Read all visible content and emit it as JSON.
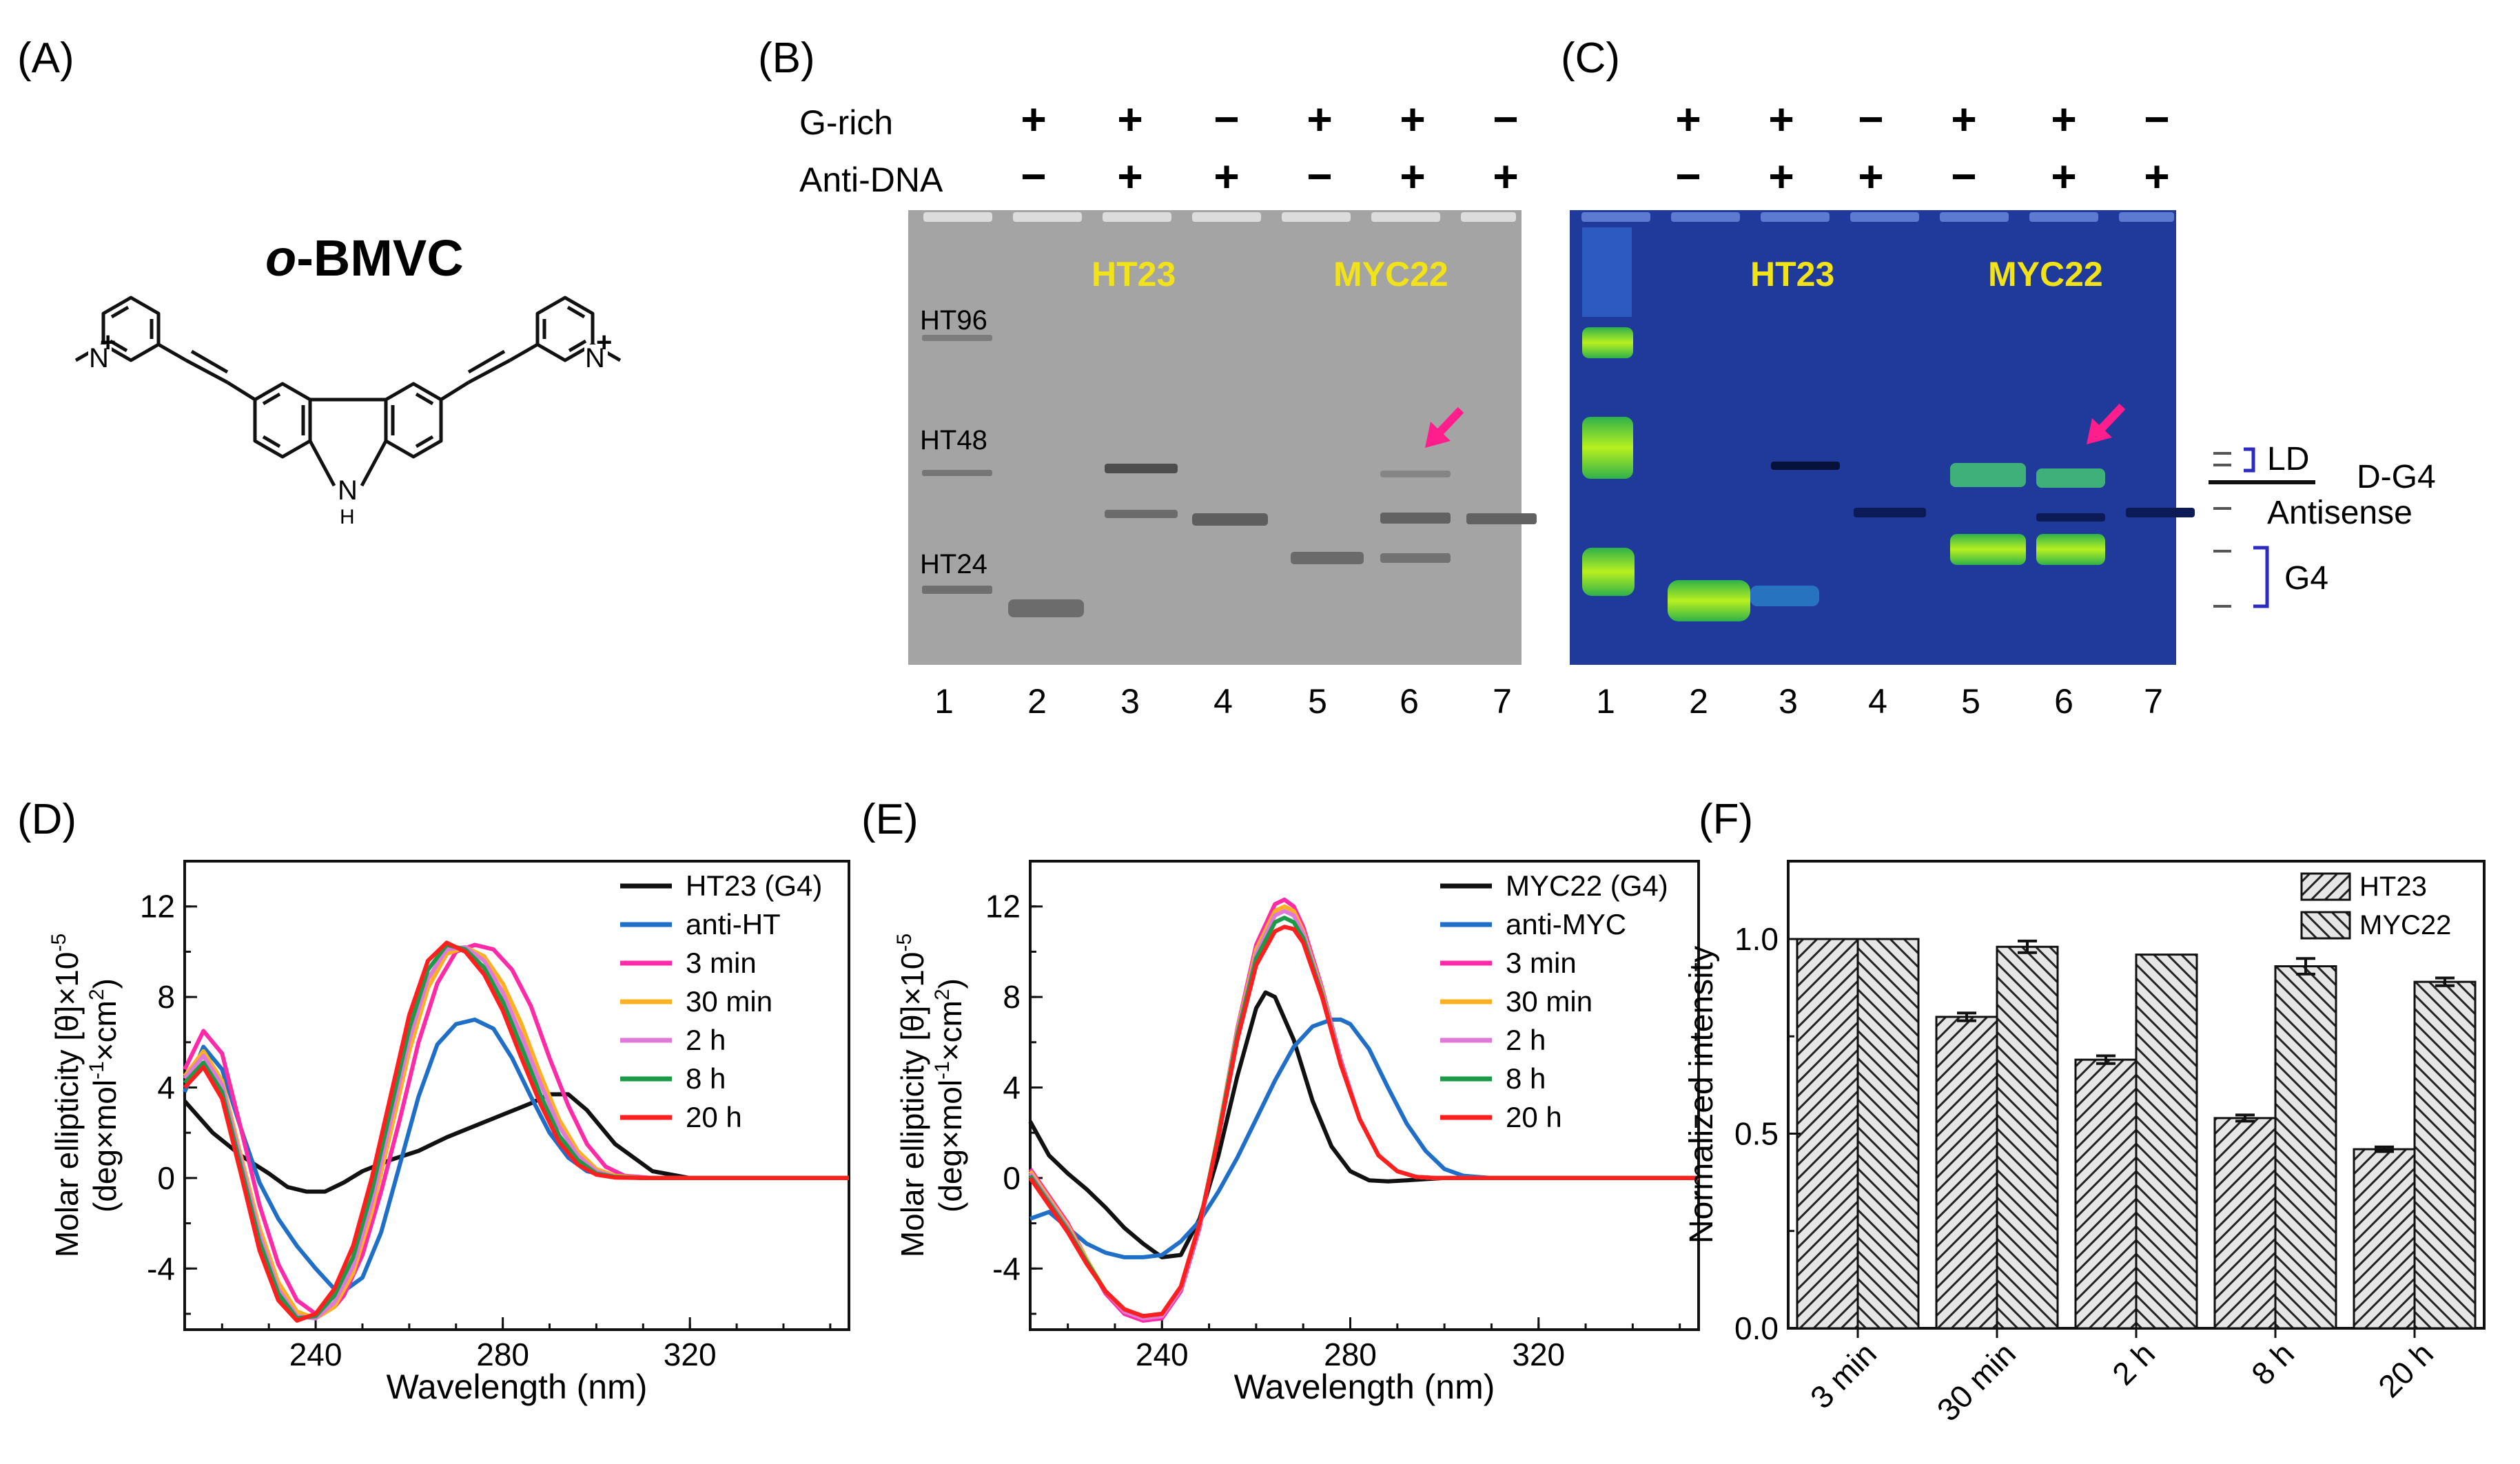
{
  "panels": {
    "A": {
      "label": "(A)",
      "compound": {
        "prefix": "o",
        "name": "-BMVC"
      },
      "atoms": {
        "cation": "N",
        "plus": "+",
        "nh": "N",
        "h": "H"
      }
    },
    "B": {
      "label": "(B)"
    },
    "C": {
      "label": "(C)"
    },
    "D": {
      "label": "(D)"
    },
    "E": {
      "label": "(E)"
    },
    "F": {
      "label": "(F)"
    }
  },
  "gel": {
    "row_labels": [
      "G-rich",
      "Anti-DNA"
    ],
    "g_rich": [
      "+",
      "+",
      "−",
      "+",
      "+",
      "−"
    ],
    "anti_dna": [
      "−",
      "+",
      "+",
      "−",
      "+",
      "+"
    ],
    "lanes": [
      "1",
      "2",
      "3",
      "4",
      "5",
      "6",
      "7"
    ],
    "sample_labels": [
      "HT23",
      "MYC22"
    ],
    "ladder": [
      "HT96",
      "HT48",
      "HT24"
    ],
    "band_labels": {
      "ld": "LD",
      "dg4": "D-G4",
      "antisense": "Antisense",
      "g4": "G4"
    },
    "colors": {
      "sample_label": "#f2e21a",
      "arrow": "#ff1e8c",
      "bracket": "#2b2bbf"
    }
  },
  "chart_data": [
    {
      "type": "line",
      "panel": "D",
      "xlabel": "Wavelength (nm)",
      "ylabel_line1": "Molar ellipticity [θ]×10",
      "ylabel_exp": "-5",
      "ylabel_line2": "(deg×mol",
      "ylabel_line2b": "×cm",
      "ylabel_line2c": ")",
      "xlim": [
        212,
        354
      ],
      "ylim": [
        -6.7,
        14
      ],
      "xticks": [
        240,
        280,
        320
      ],
      "yticks": [
        -4,
        0,
        4,
        8,
        12
      ],
      "ytick_labels": [
        "-4",
        "0",
        "4",
        "8",
        "12"
      ],
      "series": [
        {
          "name": "HT23 (G4)",
          "color": "#111111",
          "x": [
            212,
            218,
            224,
            230,
            234,
            238,
            242,
            246,
            250,
            256,
            262,
            268,
            274,
            280,
            286,
            290,
            294,
            298,
            304,
            312,
            320,
            330,
            340,
            350,
            354
          ],
          "y": [
            3.4,
            2.0,
            1.0,
            0.2,
            -0.4,
            -0.6,
            -0.6,
            -0.2,
            0.3,
            0.8,
            1.2,
            1.8,
            2.3,
            2.8,
            3.3,
            3.7,
            3.7,
            3.0,
            1.5,
            0.3,
            0,
            0,
            0,
            0,
            0
          ]
        },
        {
          "name": "anti-HT",
          "color": "#1f6fc9",
          "x": [
            212,
            216,
            220,
            224,
            228,
            232,
            236,
            240,
            244,
            246,
            250,
            254,
            258,
            262,
            266,
            270,
            274,
            278,
            282,
            286,
            290,
            294,
            298,
            304,
            310,
            320,
            330,
            340,
            350,
            354
          ],
          "y": [
            3.8,
            5.8,
            4.8,
            2.2,
            -0.2,
            -1.8,
            -3.0,
            -4.0,
            -4.9,
            -5.0,
            -4.4,
            -2.4,
            0.6,
            3.6,
            5.9,
            6.8,
            7.0,
            6.6,
            5.3,
            3.6,
            2.0,
            0.9,
            0.3,
            0.05,
            0,
            0,
            0,
            0,
            0,
            0
          ]
        },
        {
          "name": "3 min",
          "color": "#ff2aa8",
          "x": [
            212,
            216,
            220,
            224,
            228,
            232,
            236,
            240,
            244,
            246,
            250,
            254,
            258,
            262,
            266,
            270,
            274,
            278,
            282,
            286,
            290,
            294,
            298,
            302,
            306,
            312,
            320,
            330,
            340,
            350,
            354
          ],
          "y": [
            4.8,
            6.5,
            5.5,
            2.2,
            -1.2,
            -3.8,
            -5.4,
            -6.0,
            -5.7,
            -5.2,
            -3.4,
            -0.6,
            2.6,
            6.0,
            8.6,
            10.0,
            10.3,
            10.1,
            9.2,
            7.6,
            5.3,
            3.2,
            1.5,
            0.5,
            0.1,
            0,
            0,
            0,
            0,
            0,
            0
          ]
        },
        {
          "name": "30 min",
          "color": "#ffb020",
          "x": [
            212,
            216,
            220,
            224,
            228,
            232,
            236,
            240,
            244,
            248,
            252,
            256,
            260,
            264,
            268,
            272,
            276,
            280,
            284,
            288,
            292,
            296,
            300,
            304,
            310,
            320,
            330,
            340,
            350,
            354
          ],
          "y": [
            4.5,
            5.6,
            4.3,
            1.0,
            -2.2,
            -4.6,
            -5.9,
            -6.2,
            -5.7,
            -4.2,
            -1.5,
            2.0,
            5.6,
            8.4,
            9.9,
            10.2,
            9.8,
            8.6,
            6.8,
            4.6,
            2.6,
            1.2,
            0.4,
            0.1,
            0,
            0,
            0,
            0,
            0,
            0
          ]
        },
        {
          "name": "2 h",
          "color": "#e07ad8",
          "x": [
            212,
            216,
            220,
            224,
            228,
            232,
            236,
            240,
            244,
            248,
            252,
            256,
            260,
            264,
            268,
            272,
            276,
            280,
            284,
            288,
            292,
            296,
            300,
            304,
            310,
            320,
            330,
            340,
            350,
            354
          ],
          "y": [
            4.4,
            5.4,
            4.1,
            0.8,
            -2.5,
            -4.9,
            -6.1,
            -6.2,
            -5.5,
            -3.9,
            -1.1,
            2.5,
            6.1,
            8.8,
            10.1,
            10.2,
            9.6,
            8.2,
            6.3,
            4.2,
            2.3,
            1.0,
            0.3,
            0.05,
            0,
            0,
            0,
            0,
            0,
            0
          ]
        },
        {
          "name": "8 h",
          "color": "#1d9a48",
          "x": [
            212,
            216,
            220,
            224,
            228,
            232,
            236,
            240,
            244,
            248,
            252,
            256,
            260,
            264,
            268,
            272,
            276,
            280,
            284,
            288,
            292,
            296,
            300,
            304,
            310,
            320,
            330,
            340,
            350,
            354
          ],
          "y": [
            4.2,
            5.1,
            3.8,
            0.5,
            -2.8,
            -5.1,
            -6.2,
            -6.1,
            -5.2,
            -3.5,
            -0.6,
            3.0,
            6.6,
            9.2,
            10.3,
            10.1,
            9.3,
            7.8,
            5.8,
            3.7,
            1.9,
            0.8,
            0.2,
            0.05,
            0,
            0,
            0,
            0,
            0,
            0
          ]
        },
        {
          "name": "20 h",
          "color": "#ff1f1f",
          "x": [
            212,
            216,
            220,
            224,
            228,
            232,
            236,
            240,
            244,
            248,
            252,
            256,
            260,
            264,
            268,
            272,
            276,
            280,
            284,
            288,
            292,
            296,
            300,
            304,
            310,
            320,
            330,
            340,
            350,
            354
          ],
          "y": [
            4.0,
            4.9,
            3.5,
            0.2,
            -3.2,
            -5.4,
            -6.3,
            -6.0,
            -4.9,
            -3.0,
            0.0,
            3.6,
            7.2,
            9.6,
            10.4,
            10.0,
            9.0,
            7.4,
            5.3,
            3.3,
            1.6,
            0.6,
            0.15,
            0.02,
            0,
            0,
            0,
            0,
            0,
            0
          ]
        }
      ]
    },
    {
      "type": "line",
      "panel": "E",
      "xlabel": "Wavelength (nm)",
      "ylabel_line1": "Molar ellipticity [θ]×10",
      "ylabel_exp": "-5",
      "ylabel_line2": "(deg×mol",
      "ylabel_line2b": "×cm",
      "ylabel_line2c": ")",
      "xlim": [
        212,
        354
      ],
      "ylim": [
        -6.7,
        14
      ],
      "xticks": [
        240,
        280,
        320
      ],
      "yticks": [
        -4,
        0,
        4,
        8,
        12
      ],
      "ytick_labels": [
        "-4",
        "0",
        "4",
        "8",
        "12"
      ],
      "series": [
        {
          "name": "MYC22 (G4)",
          "color": "#111111",
          "x": [
            212,
            216,
            220,
            224,
            228,
            232,
            236,
            240,
            244,
            248,
            252,
            256,
            260,
            262,
            264,
            268,
            272,
            276,
            280,
            284,
            288,
            292,
            296,
            300,
            306,
            312,
            320,
            330,
            340,
            350,
            354
          ],
          "y": [
            2.5,
            1.0,
            0.2,
            -0.5,
            -1.3,
            -2.2,
            -2.9,
            -3.5,
            -3.4,
            -1.8,
            1.0,
            4.5,
            7.5,
            8.2,
            8.0,
            6.1,
            3.4,
            1.4,
            0.3,
            -0.1,
            -0.15,
            -0.1,
            -0.05,
            0,
            0,
            0,
            0,
            0,
            0,
            0,
            0
          ]
        },
        {
          "name": "anti-MYC",
          "color": "#1f6fc9",
          "x": [
            212,
            216,
            220,
            224,
            228,
            232,
            236,
            240,
            244,
            248,
            252,
            256,
            260,
            264,
            268,
            272,
            276,
            278,
            280,
            284,
            288,
            292,
            296,
            300,
            304,
            310,
            320,
            330,
            340,
            350,
            354
          ],
          "y": [
            -1.8,
            -1.5,
            -2.2,
            -2.9,
            -3.3,
            -3.5,
            -3.5,
            -3.4,
            -2.8,
            -1.9,
            -0.6,
            0.9,
            2.6,
            4.3,
            5.8,
            6.7,
            7.0,
            7.0,
            6.8,
            5.7,
            4.0,
            2.4,
            1.2,
            0.4,
            0.1,
            0,
            0,
            0,
            0,
            0,
            0
          ]
        },
        {
          "name": "3 min",
          "color": "#ff2aa8",
          "x": [
            212,
            216,
            220,
            224,
            228,
            232,
            236,
            240,
            244,
            248,
            252,
            256,
            260,
            264,
            266,
            268,
            270,
            274,
            278,
            282,
            286,
            290,
            294,
            298,
            302,
            308,
            316,
            330,
            340,
            350,
            354
          ],
          "y": [
            0.4,
            -0.8,
            -2.0,
            -3.6,
            -5.1,
            -6.0,
            -6.3,
            -6.2,
            -5.0,
            -2.2,
            2.0,
            6.6,
            10.3,
            12.1,
            12.3,
            12.0,
            11.1,
            8.4,
            5.2,
            2.6,
            1.0,
            0.3,
            0.05,
            0,
            0,
            0,
            0,
            0,
            0,
            0,
            0
          ]
        },
        {
          "name": "30 min",
          "color": "#ffb020",
          "x": [
            212,
            216,
            220,
            224,
            228,
            232,
            236,
            240,
            244,
            248,
            252,
            256,
            260,
            264,
            266,
            268,
            270,
            274,
            278,
            282,
            286,
            290,
            294,
            298,
            302,
            308,
            316,
            330,
            340,
            350,
            354
          ],
          "y": [
            0.3,
            -0.9,
            -2.1,
            -3.6,
            -5.0,
            -5.9,
            -6.2,
            -6.1,
            -4.9,
            -2.1,
            2.0,
            6.5,
            10.1,
            11.8,
            12.0,
            11.8,
            10.9,
            8.3,
            5.1,
            2.6,
            1.0,
            0.3,
            0.05,
            0,
            0,
            0,
            0,
            0,
            0,
            0,
            0
          ]
        },
        {
          "name": "2 h",
          "color": "#e07ad8",
          "x": [
            212,
            216,
            220,
            224,
            228,
            232,
            236,
            240,
            244,
            248,
            252,
            256,
            260,
            264,
            266,
            268,
            270,
            274,
            278,
            282,
            286,
            290,
            294,
            298,
            302,
            308,
            316,
            330,
            340,
            350,
            354
          ],
          "y": [
            0.2,
            -1.0,
            -2.2,
            -3.7,
            -5.0,
            -5.9,
            -6.2,
            -6.1,
            -4.9,
            -2.1,
            1.9,
            6.4,
            9.9,
            11.6,
            11.8,
            11.6,
            10.8,
            8.2,
            5.1,
            2.6,
            1.0,
            0.3,
            0.05,
            0,
            0,
            0,
            0,
            0,
            0,
            0,
            0
          ]
        },
        {
          "name": "8 h",
          "color": "#1d9a48",
          "x": [
            212,
            216,
            220,
            224,
            228,
            232,
            236,
            240,
            244,
            248,
            252,
            256,
            260,
            264,
            266,
            268,
            270,
            274,
            278,
            282,
            286,
            290,
            294,
            298,
            302,
            308,
            316,
            330,
            340,
            350,
            354
          ],
          "y": [
            0.1,
            -1.1,
            -2.3,
            -3.7,
            -5.0,
            -5.8,
            -6.1,
            -6.0,
            -4.8,
            -2.0,
            1.9,
            6.3,
            9.7,
            11.3,
            11.5,
            11.3,
            10.6,
            8.1,
            5.0,
            2.6,
            1.0,
            0.3,
            0.05,
            0,
            0,
            0,
            0,
            0,
            0,
            0,
            0
          ]
        },
        {
          "name": "20 h",
          "color": "#ff1f1f",
          "x": [
            212,
            216,
            220,
            224,
            228,
            232,
            236,
            240,
            244,
            248,
            252,
            256,
            260,
            264,
            266,
            268,
            270,
            274,
            278,
            282,
            286,
            290,
            294,
            298,
            302,
            308,
            316,
            330,
            340,
            350,
            354
          ],
          "y": [
            0.0,
            -1.2,
            -2.4,
            -3.8,
            -5.0,
            -5.8,
            -6.1,
            -6.0,
            -4.8,
            -2.0,
            1.8,
            6.1,
            9.4,
            10.9,
            11.1,
            11.0,
            10.4,
            8.0,
            5.0,
            2.6,
            1.0,
            0.3,
            0.05,
            0,
            0,
            0,
            0,
            0,
            0,
            0,
            0
          ]
        }
      ]
    },
    {
      "type": "bar",
      "panel": "F",
      "categories": [
        "3 min",
        "30 min",
        "2 h",
        "8 h",
        "20 h"
      ],
      "ylabel": "Normalized intensity",
      "ylim": [
        0.0,
        1.2
      ],
      "yticks": [
        0.0,
        0.5,
        1.0
      ],
      "ytick_labels": [
        "0.0",
        "0.5",
        "1.0"
      ],
      "series": [
        {
          "name": "HT23",
          "values": [
            1.0,
            0.8,
            0.69,
            0.54,
            0.46
          ],
          "errors": [
            0,
            0.01,
            0.01,
            0.008,
            0.006
          ],
          "hatch": "forward"
        },
        {
          "name": "MYC22",
          "values": [
            1.0,
            0.98,
            0.96,
            0.93,
            0.89
          ],
          "errors": [
            0,
            0.015,
            0,
            0.02,
            0.01
          ],
          "hatch": "back"
        }
      ]
    }
  ]
}
